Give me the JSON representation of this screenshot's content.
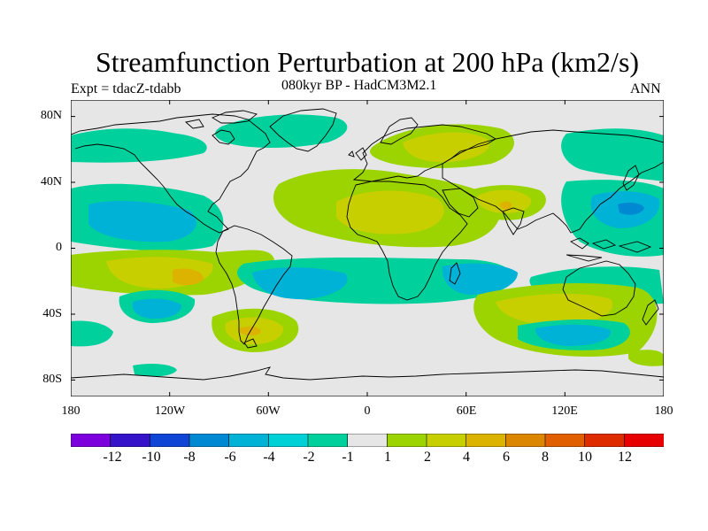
{
  "title": "Streamfunction Perturbation at 200 hPa (km2/s)",
  "subtitle_left": "Expt = tdacZ-tdabb",
  "subtitle_center": "080kyr BP - HadCM3M2.1",
  "subtitle_right": "ANN",
  "map": {
    "projection": "cylindrical-equidistant",
    "lon_range": [
      -180,
      180
    ],
    "lat_range": [
      -90,
      90
    ],
    "lat_ticks": [
      "80N",
      "40N",
      "0",
      "40S",
      "80S"
    ],
    "lon_ticks": [
      "180",
      "120W",
      "60W",
      "0",
      "60E",
      "120E",
      "180"
    ],
    "background_color": "#e6e6e6",
    "coast_color": "#000000"
  },
  "colorbar": {
    "labels": [
      "-12",
      "-10",
      "-8",
      "-6",
      "-4",
      "-2",
      "-1",
      "1",
      "2",
      "4",
      "6",
      "8",
      "10",
      "12"
    ],
    "colors": [
      "#7b00db",
      "#3413c9",
      "#0f45d4",
      "#0089d2",
      "#00b2d6",
      "#00d1d6",
      "#00d19c",
      "#e6e6e6",
      "#9bd400",
      "#c8cf00",
      "#dbb300",
      "#dc8700",
      "#e05f00",
      "#df2b00",
      "#e60000"
    ]
  }
}
